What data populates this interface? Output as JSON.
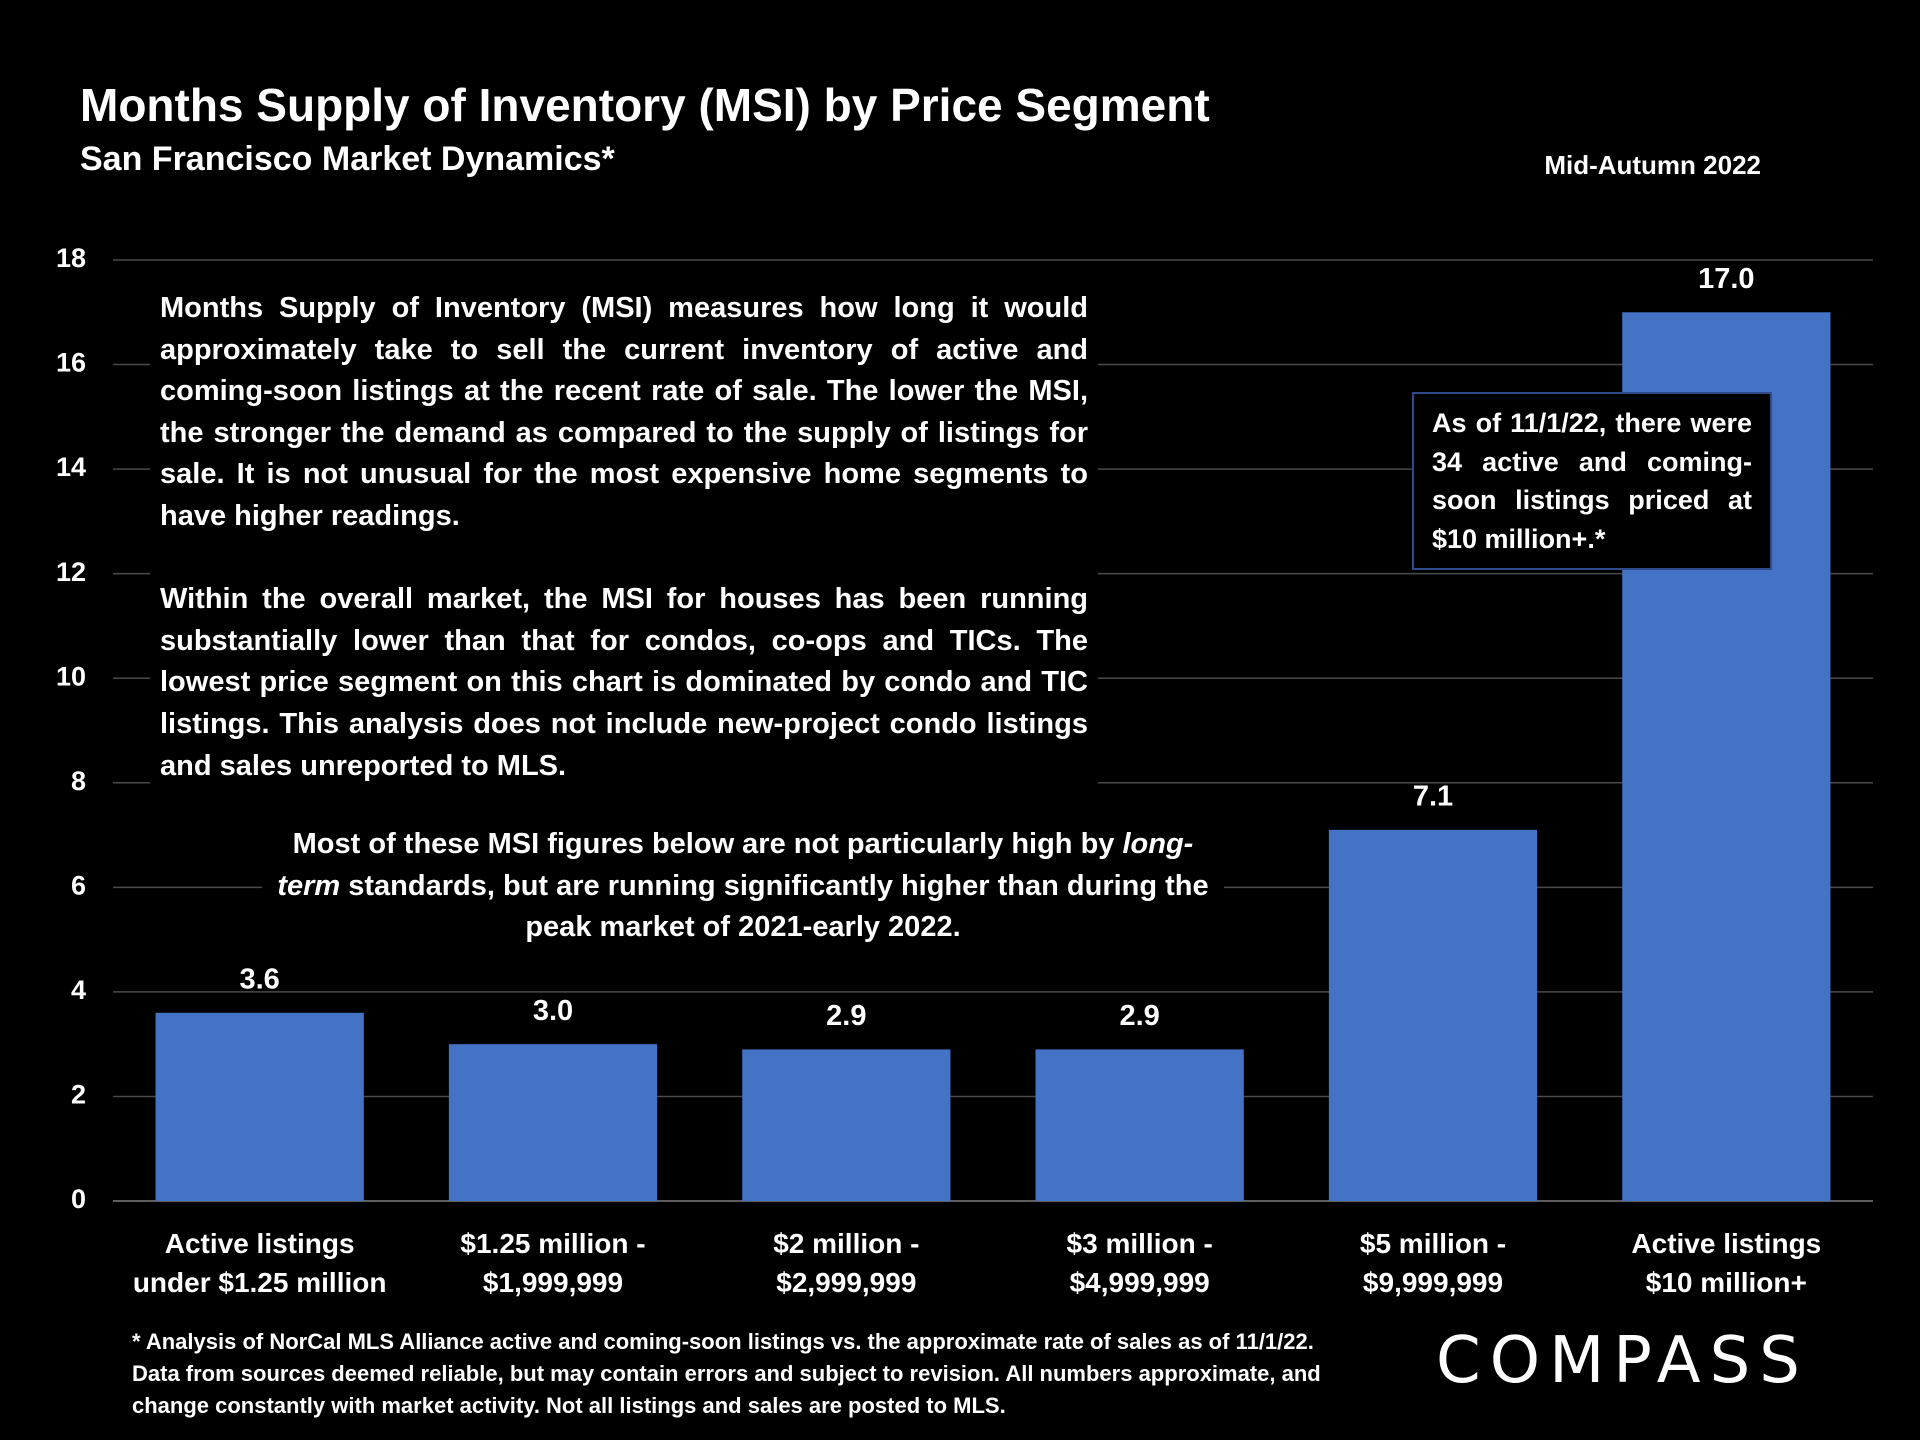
{
  "chart_data": {
    "type": "bar",
    "title": "Months Supply of Inventory (MSI) by Price Segment",
    "subtitle": "San Francisco Market Dynamics*",
    "period": "Mid-Autumn 2022",
    "categories": [
      "Active listings\nunder $1.25 million",
      "$1.25 million -\n$1,999,999",
      "$2 million -\n$2,999,999",
      "$3 million -\n$4,999,999",
      "$5 million -\n$9,999,999",
      "Active listings\n$10 million+"
    ],
    "values": [
      3.6,
      3.0,
      2.9,
      2.9,
      7.1,
      17.0
    ],
    "value_labels": [
      "3.6",
      "3.0",
      "2.9",
      "2.9",
      "7.1",
      "17.0"
    ],
    "color": "#4472c4",
    "ylim": [
      0,
      18
    ],
    "yticks": [
      0,
      2,
      4,
      6,
      8,
      10,
      12,
      14,
      16,
      18
    ],
    "grid": true,
    "description": [
      "Months Supply of Inventory (MSI) measures how long it would approximately take to sell the current inventory of active and coming-soon listings at the recent rate of sale. The lower the MSI, the stronger the demand as compared to the supply of listings for sale. It is not unusual for the most expensive home segments to have higher readings.",
      "Within the overall market, the MSI for houses has been running substantially lower than that for condos, co-ops and TICs. The lowest price segment on this chart is dominated by condo and TIC listings. This analysis does not include new-project condo listings and sales unreported to MLS."
    ],
    "note": [
      "Most of these MSI figures below are not particularly high by ",
      "long-term",
      " standards, but are running significantly higher than during the peak market of 2021-early 2022."
    ],
    "callout": "As of 11/1/22, there were 34 active and coming-soon listings priced at $10 million+.*",
    "footnote": "* Analysis of NorCal MLS Alliance active and coming-soon listings vs. the approximate rate of sales as of 11/1/22. Data from sources deemed reliable, but may contain errors and subject to revision. All numbers approximate, and change constantly with market activity. Not all listings and sales are posted to MLS.",
    "brand": "COMPASS"
  }
}
